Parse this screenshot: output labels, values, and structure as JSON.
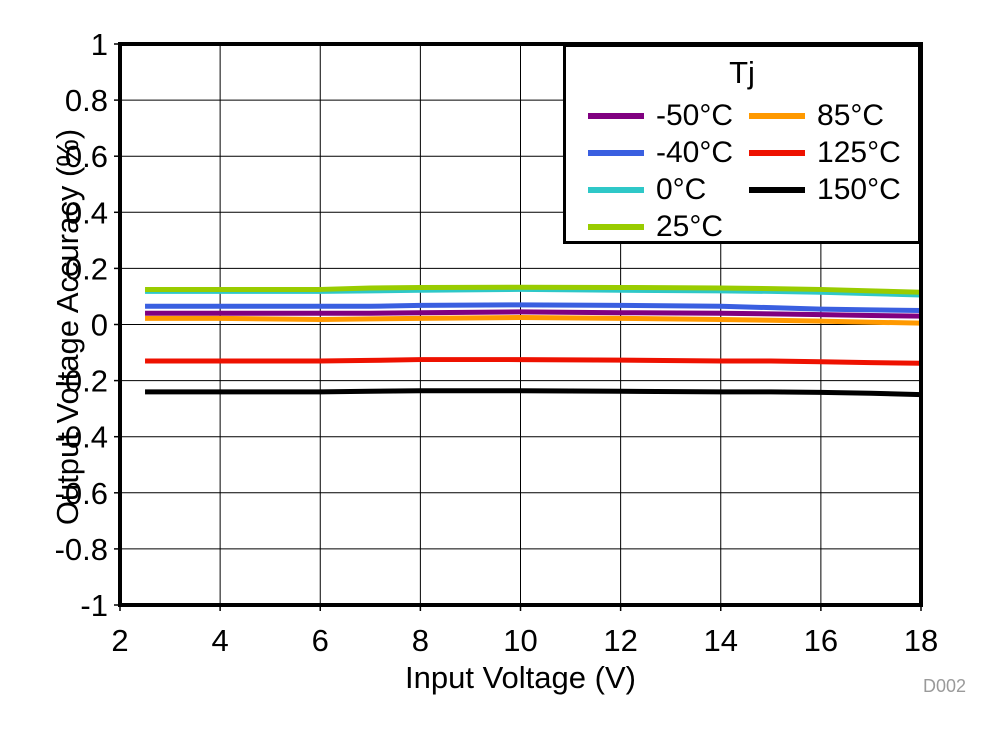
{
  "watermark": "D002",
  "chart_data": {
    "type": "line",
    "title": "",
    "xlabel": "Input Voltage (V)",
    "ylabel": "Output Voltage Accuracy (%)",
    "xlim": [
      2,
      18
    ],
    "ylim": [
      -1,
      1
    ],
    "xticks": [
      2,
      4,
      6,
      8,
      10,
      12,
      14,
      16,
      18
    ],
    "yticks": [
      1,
      0.8,
      0.6,
      0.4,
      0.2,
      0,
      -0.2,
      -0.4,
      -0.6,
      -0.8,
      -1
    ],
    "grid": true,
    "legend": {
      "title": "Tj",
      "position": "top-right",
      "rows_per_column": 4
    },
    "x": [
      2.5,
      4,
      6,
      7,
      8,
      10,
      12,
      14,
      15,
      16,
      17,
      18
    ],
    "series": [
      {
        "name": "-50°C",
        "color": "#800080",
        "values": [
          0.04,
          0.04,
          0.04,
          0.04,
          0.042,
          0.045,
          0.042,
          0.04,
          0.038,
          0.035,
          0.032,
          0.03
        ]
      },
      {
        "name": "-40°C",
        "color": "#3A5FE0",
        "values": [
          0.065,
          0.065,
          0.065,
          0.065,
          0.068,
          0.07,
          0.068,
          0.065,
          0.06,
          0.055,
          0.052,
          0.05
        ]
      },
      {
        "name": "0°C",
        "color": "#2EC8C8",
        "values": [
          0.118,
          0.118,
          0.118,
          0.12,
          0.122,
          0.125,
          0.122,
          0.12,
          0.118,
          0.115,
          0.11,
          0.105
        ]
      },
      {
        "name": "25°C",
        "color": "#99CC00",
        "values": [
          0.125,
          0.125,
          0.125,
          0.13,
          0.132,
          0.133,
          0.132,
          0.13,
          0.128,
          0.125,
          0.12,
          0.115
        ]
      },
      {
        "name": "85°C",
        "color": "#FF9900",
        "values": [
          0.022,
          0.022,
          0.018,
          0.02,
          0.022,
          0.025,
          0.022,
          0.018,
          0.015,
          0.012,
          0.008,
          0.005
        ]
      },
      {
        "name": "125°C",
        "color": "#EE1100",
        "values": [
          -0.13,
          -0.13,
          -0.13,
          -0.128,
          -0.125,
          -0.125,
          -0.127,
          -0.13,
          -0.13,
          -0.133,
          -0.136,
          -0.138
        ]
      },
      {
        "name": "150°C",
        "color": "#000000",
        "values": [
          -0.24,
          -0.24,
          -0.24,
          -0.238,
          -0.236,
          -0.236,
          -0.238,
          -0.24,
          -0.24,
          -0.242,
          -0.245,
          -0.25
        ]
      }
    ]
  }
}
